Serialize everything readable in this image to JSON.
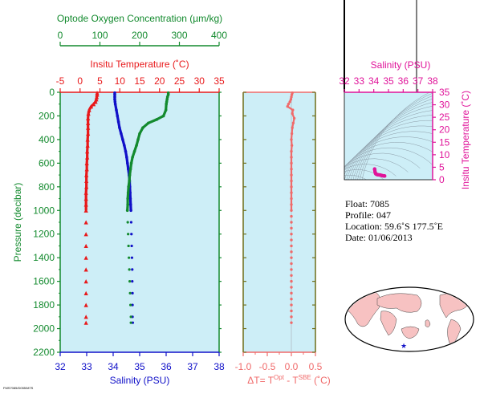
{
  "chart_data": [
    {
      "type": "line",
      "title": "",
      "ylabel": "Pressure (decibar)",
      "ylim": [
        0,
        2200
      ],
      "yticks": [
        0,
        200,
        400,
        600,
        800,
        1000,
        1200,
        1400,
        1600,
        1800,
        2000,
        2200
      ],
      "axes": {
        "oxygen": {
          "label": "Optode Oxygen Concentration (µm/kg)",
          "range": [
            0,
            400
          ],
          "ticks": [
            0,
            100,
            200,
            300,
            400
          ],
          "color": "#138a2e"
        },
        "temperature": {
          "label": "Insitu Temperature (˚C)",
          "range": [
            -5,
            35
          ],
          "ticks": [
            -5,
            0,
            5,
            10,
            15,
            20,
            25,
            30,
            35
          ],
          "color": "#e8191b"
        },
        "salinity": {
          "label": "Salinity (PSU)",
          "range": [
            32,
            38
          ],
          "ticks": [
            32,
            33,
            34,
            35,
            36,
            37,
            38
          ],
          "color": "#1010c8"
        }
      },
      "series": [
        {
          "name": "temperature",
          "color": "#e8191b",
          "pressure": [
            5,
            20,
            40,
            60,
            80,
            100,
            120,
            150,
            180,
            220,
            260,
            300,
            350,
            400,
            450,
            500,
            550,
            600,
            650,
            700,
            750,
            800,
            850,
            900,
            950,
            1000,
            1100,
            1200,
            1300,
            1400,
            1500,
            1600,
            1700,
            1800,
            1900,
            1950
          ],
          "values": [
            4.3,
            4.3,
            4.2,
            4.1,
            3.9,
            3.4,
            2.8,
            2.3,
            2.1,
            2.0,
            2.0,
            2.0,
            2.0,
            1.9,
            1.9,
            1.8,
            1.8,
            1.7,
            1.7,
            1.6,
            1.6,
            1.6,
            1.5,
            1.5,
            1.5,
            1.5,
            1.5,
            1.5,
            1.5,
            1.5,
            1.5,
            1.5,
            1.5,
            1.5,
            1.5,
            1.5
          ]
        },
        {
          "name": "salinity",
          "color": "#1010c8",
          "pressure": [
            5,
            20,
            40,
            60,
            80,
            100,
            150,
            200,
            250,
            300,
            350,
            400,
            450,
            500,
            550,
            600,
            650,
            700,
            750,
            800,
            850,
            900,
            950,
            1000,
            1100,
            1200,
            1300,
            1400,
            1500,
            1600,
            1700,
            1800,
            1900,
            1950
          ],
          "values": [
            34.06,
            34.06,
            34.06,
            34.06,
            34.07,
            34.08,
            34.12,
            34.16,
            34.2,
            34.24,
            34.3,
            34.36,
            34.42,
            34.47,
            34.51,
            34.54,
            34.57,
            34.6,
            34.62,
            34.63,
            34.64,
            34.65,
            34.66,
            34.67,
            34.68,
            34.69,
            34.7,
            34.71,
            34.72,
            34.72,
            34.73,
            34.73,
            34.73,
            34.74
          ]
        },
        {
          "name": "oxygen",
          "color": "#138a2e",
          "pressure": [
            5,
            20,
            40,
            60,
            80,
            100,
            150,
            200,
            230,
            260,
            300,
            350,
            400,
            450,
            500,
            550,
            600,
            650,
            700,
            750,
            800,
            850,
            900,
            950,
            1000,
            1100,
            1200,
            1300,
            1400,
            1500,
            1600,
            1700,
            1800,
            1900,
            1950
          ],
          "values": [
            272,
            272,
            270,
            269,
            268,
            267,
            266,
            260,
            243,
            222,
            208,
            200,
            196,
            192,
            187,
            182,
            179,
            177,
            175,
            174,
            172,
            171,
            170,
            170,
            169,
            170,
            171,
            172,
            173,
            174,
            175,
            176,
            177,
            178,
            178
          ]
        }
      ]
    },
    {
      "type": "scatter",
      "xlabel_parts": {
        "pre": "ΔT= T",
        "sup1": "Opt",
        "mid": " - T",
        "sup2": "SBE",
        "post": " (˚C)"
      },
      "xlim": [
        -1.0,
        0.5
      ],
      "xticks": [
        "-1.0",
        "-0.5",
        "0.0",
        "0.5"
      ],
      "color": "#f06a6a",
      "pressure": [
        5,
        20,
        40,
        60,
        80,
        100,
        120,
        150,
        180,
        220,
        260,
        300,
        350,
        400,
        450,
        500,
        550,
        600,
        650,
        700,
        750,
        800,
        850,
        900,
        950,
        1000,
        1050,
        1100,
        1150,
        1200,
        1250,
        1300,
        1350,
        1400,
        1450,
        1500,
        1550,
        1600,
        1650,
        1700,
        1750,
        1800,
        1850,
        1900,
        1950
      ],
      "values": [
        0.02,
        0.01,
        0.0,
        -0.01,
        -0.03,
        -0.06,
        -0.08,
        0.03,
        0.02,
        0.06,
        0.04,
        0.02,
        0.01,
        0.0,
        0.01,
        0.0,
        0.0,
        0.0,
        0.0,
        0.0,
        0.0,
        0.0,
        0.0,
        0.0,
        0.0,
        0.0,
        0.0,
        0.0,
        0.0,
        0.0,
        0.0,
        0.0,
        0.0,
        0.0,
        0.0,
        0.0,
        0.0,
        0.0,
        0.0,
        0.0,
        0.0,
        0.0,
        0.0,
        0.0,
        0.0
      ]
    },
    {
      "type": "scatter",
      "xlabel": "Salinity (PSU)",
      "ylabel": "Insitu Temperature (˚C)",
      "xlim": [
        32,
        38
      ],
      "ylim": [
        0,
        35
      ],
      "xticks": [
        32,
        33,
        34,
        35,
        36,
        37,
        38
      ],
      "yticks": [
        0,
        5,
        10,
        15,
        20,
        25,
        30,
        35
      ],
      "color": "#e0149a",
      "x": [
        34.06,
        34.06,
        34.07,
        34.08,
        34.1,
        34.12,
        34.15,
        34.18,
        34.22,
        34.26,
        34.32,
        34.38,
        34.44,
        34.5,
        34.55,
        34.6,
        34.65,
        34.7,
        34.73,
        34.74
      ],
      "y": [
        4.3,
        4.2,
        3.9,
        3.4,
        2.9,
        2.5,
        2.3,
        2.2,
        2.1,
        2.0,
        2.0,
        1.9,
        1.9,
        1.8,
        1.7,
        1.6,
        1.6,
        1.5,
        1.5,
        1.5
      ]
    }
  ],
  "float_info": {
    "float": "Float:  7085",
    "profile": "Profile:  047",
    "location": "Location:  59.6˚S  177.5˚E",
    "date": "Date:  01/06/2013"
  },
  "map": {
    "marker_color": "#1414c8",
    "land_color": "#f7c2c2",
    "ocean_color": "#ffffff"
  },
  "footer_tiny": "FMS7085/D055/M7S"
}
